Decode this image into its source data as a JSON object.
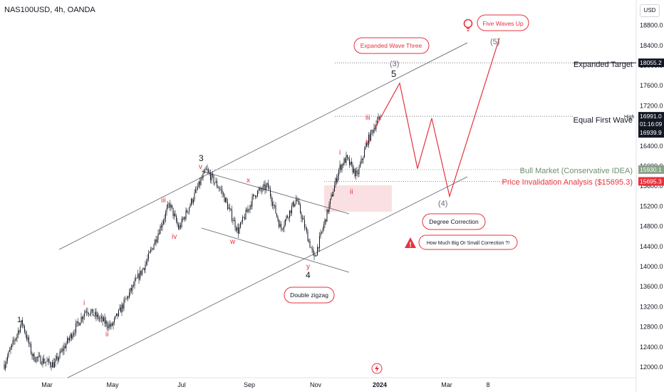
{
  "symbol": "NAS100USD, 4h, OANDA",
  "currency_button": "USD",
  "colors": {
    "candle": "#131722",
    "red": "#e8323f",
    "gray_line": "#4a4d57",
    "channel": "#5d606b",
    "green_line": "#89a389",
    "label_blue": "#3c4a7a"
  },
  "chart_data": {
    "type": "candlestick",
    "ylim": [
      11900,
      19000
    ],
    "y_ticks": [
      "18800.0",
      "18400.0",
      "18000.0",
      "17600.0",
      "17200.0",
      "16800.0",
      "16400.0",
      "16000.0",
      "15600.0",
      "15200.0",
      "14800.0",
      "14400.0",
      "14000.0",
      "13600.0",
      "13200.0",
      "12800.0",
      "12400.0",
      "12000.0"
    ],
    "x_ticks": [
      "Mar",
      "May",
      "Jul",
      "Sep",
      "Nov",
      "2024",
      "Mar",
      "8"
    ],
    "price_labels": {
      "expanded_target": "18055.2",
      "high_caption": "High",
      "high": "16996.0",
      "last_price": "16991.0",
      "countdown": "01:16:09",
      "bid": "16939.9",
      "bull_market": "15930.1",
      "invalidation": "15695.3"
    },
    "levels": {
      "expanded_target": "Expanded Target",
      "equal_first_wave": "Equal First Wave",
      "bull_market": "Bull Market (Conservative IDEA)",
      "invalidation": "Price Invalidation Analysis ($15695.3)"
    },
    "callouts": {
      "five_waves_up": "Five Waves Up",
      "expanded_wave_three": "Expanded Wave Three",
      "degree_correction": "Degree Correction",
      "how_much": "How Much Big Or Small Correction ?!",
      "double_zigzag": "Double zigzag"
    },
    "wave_labels": {
      "w1": "1",
      "i": "i",
      "ii": "ii",
      "iii": "iii",
      "iv": "iv",
      "v": "v",
      "w3": "3",
      "x": "x",
      "w": "w",
      "y": "y",
      "w4": "4",
      "i2": "i",
      "ii2": "ii",
      "iii2": "iii",
      "iv2": "iv",
      "w5": "5",
      "p3": "(3)",
      "p4": "(4)",
      "p5": "(5)"
    },
    "price_anchors": [
      {
        "t": 0,
        "p": 12050
      },
      {
        "t": 25,
        "p": 12900
      },
      {
        "t": 40,
        "p": 12200
      },
      {
        "t": 70,
        "p": 12050
      },
      {
        "t": 115,
        "p": 13150
      },
      {
        "t": 150,
        "p": 12800
      },
      {
        "t": 200,
        "p": 14100
      },
      {
        "t": 232,
        "p": 15250
      },
      {
        "t": 245,
        "p": 14750
      },
      {
        "t": 283,
        "p": 15920
      },
      {
        "t": 305,
        "p": 15500
      },
      {
        "t": 328,
        "p": 14700
      },
      {
        "t": 352,
        "p": 15450
      },
      {
        "t": 370,
        "p": 15600
      },
      {
        "t": 388,
        "p": 14750
      },
      {
        "t": 410,
        "p": 15350
      },
      {
        "t": 435,
        "p": 14150
      },
      {
        "t": 452,
        "p": 15000
      },
      {
        "t": 470,
        "p": 15950
      },
      {
        "t": 480,
        "p": 16150
      },
      {
        "t": 495,
        "p": 15800
      },
      {
        "t": 510,
        "p": 16500
      },
      {
        "t": 520,
        "p": 16800
      },
      {
        "t": 528,
        "p": 16990
      }
    ],
    "projection": [
      {
        "t": 520,
        "p": 16750
      },
      {
        "t": 555,
        "p": 17650
      },
      {
        "t": 580,
        "p": 15950
      },
      {
        "t": 600,
        "p": 16950
      },
      {
        "t": 625,
        "p": 15400
      },
      {
        "t": 695,
        "p": 18550
      }
    ]
  }
}
